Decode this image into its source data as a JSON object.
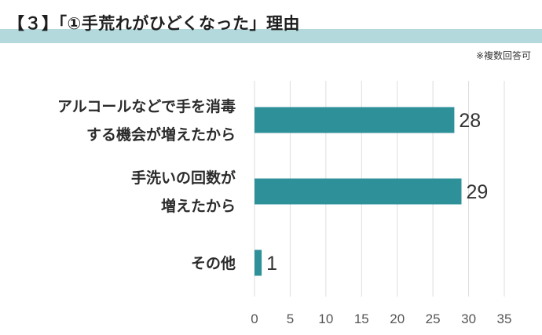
{
  "header": {
    "title": "【３】「①手荒れがひどくなった」理由",
    "note": "※複数回答可"
  },
  "colors": {
    "bar": "#2e9099",
    "title_band": "#b3d9dd",
    "grid": "#dddddd"
  },
  "chart_data": {
    "type": "bar",
    "orientation": "horizontal",
    "categories": [
      [
        "アルコールなどで手を消毒",
        "する機会が増えたから"
      ],
      [
        "手洗いの回数が",
        "増えたから"
      ],
      [
        "その他"
      ]
    ],
    "values": [
      28,
      29,
      1
    ],
    "xlim": [
      0,
      35
    ],
    "xticks": [
      0,
      5,
      10,
      15,
      20,
      25,
      30,
      35
    ],
    "grid": true
  }
}
